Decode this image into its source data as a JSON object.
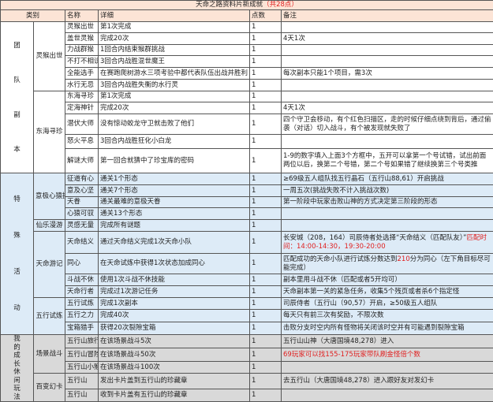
{
  "title": {
    "text": "天命之路资料片新成就",
    "highlight": "（共28点）"
  },
  "headers": {
    "category": "类别",
    "name": "名称",
    "detail": "详细",
    "points": "点数",
    "note": "备注"
  },
  "colors": {
    "header_bg": "#fce4d6",
    "special_bg": "#ddebf7",
    "growth_bg": "#d9d9d9",
    "red": "#e02020"
  },
  "sections": [
    {
      "label": "团队副本",
      "groups": [
        {
          "label": "灵猴出世",
          "rows": [
            {
              "name": "灵猴出世",
              "detail": "第1次完成",
              "points": "1",
              "note": [
                {
                  "t": ""
                }
              ]
            },
            {
              "name": "盖世灵猴",
              "detail": "完成20次",
              "points": "1",
              "note": [
                {
                  "t": "4天1次"
                }
              ]
            },
            {
              "name": "力战群猴",
              "detail": "1回合内结束猴群挑战",
              "points": "1",
              "note": [
                {
                  "t": ""
                }
              ]
            },
            {
              "name": "不打不相识",
              "detail": "3回合内战胜混世魔王",
              "points": "1",
              "note": [
                {
                  "t": ""
                }
              ]
            },
            {
              "name": "全能选手",
              "detail": "在赛跑爬树游水三项考验中都代表队伍出战并胜利",
              "points": "1",
              "note": [
                {
                  "t": "每次副本只能1个项目，需3次"
                }
              ]
            },
            {
              "name": "水行无忌",
              "detail": "3回合内战胜失衡的水行灵",
              "points": "1",
              "note": [
                {
                  "t": ""
                }
              ]
            }
          ]
        },
        {
          "label": "东海寻珍",
          "rows": [
            {
              "name": "东海寻珍",
              "detail": "第1次完成",
              "points": "1",
              "note": [
                {
                  "t": ""
                }
              ]
            },
            {
              "name": "定海神针",
              "detail": "完成20次",
              "points": "1",
              "note": [
                {
                  "t": "4天1次"
                }
              ]
            },
            {
              "name": "潜伏大师",
              "detail": "没有惊动蛟龙守卫就击败了他们",
              "points": "1",
              "note": [
                {
                  "t": "四个守卫会移动，有个红色扫描区，走的时候仔细点绕到背后，通过偷袭（对话）切入战斗，有个被发现就失败了"
                }
              ]
            },
            {
              "name": "怒火平息",
              "detail": "3回合内战胜狂化小白龙",
              "points": "1",
              "note": [
                {
                  "t": ""
                }
              ]
            },
            {
              "name": "解谜大师",
              "detail": "第一回合就猜中了珍宝库的密码",
              "points": "1",
              "note": [
                {
                  "t": "1-9的数字填入上面3个方框中，五开可以拿第一个号试错，试出前面两位以后，换第二个号错，第二个号如果错了继续换第三个号类推"
                }
              ]
            }
          ]
        }
      ]
    },
    {
      "label": "特殊活动",
      "groups": [
        {
          "label": "意极心猿挑战",
          "rows": [
            {
              "name": "征道有心",
              "detail": "通关1个形态",
              "points": "1",
              "note": [
                {
                  "t": "≥69级五人组队找五行晶石（五行山88,61）开启挑战"
                }
              ]
            },
            {
              "name": "意及心坚",
              "detail": "通关7个形态",
              "points": "1",
              "note": [
                {
                  "t": "一周五次(挑战失败不计入挑战次数)"
                }
              ]
            },
            {
              "name": "天眷",
              "detail": "通关最难的意极天眷",
              "points": "1",
              "note": [
                {
                  "t": "第一阶段中玩家击败山神的方式决定第三阶段的形态"
                }
              ]
            },
            {
              "name": "心猿可驭",
              "detail": "通关13个形态",
              "points": "1",
              "note": [
                {
                  "t": ""
                }
              ]
            }
          ]
        },
        {
          "label": "仙乐漫游",
          "rows": [
            {
              "name": "灵感无量",
              "detail": "完成所有谜题",
              "points": "1",
              "note": [
                {
                  "t": ""
                }
              ]
            }
          ]
        },
        {
          "label": "天命游记",
          "rows": [
            {
              "name": "天命结义",
              "detail": "通过天命结义完成1次天命小队",
              "points": "1",
              "note": [
                {
                  "t": "长安城（208，164）司辰侍者处选择“天命结义（匹配队友）”"
                },
                {
                  "t": "匹配时间：14:00-14:30，19:30-20:00",
                  "red": true
                }
              ]
            },
            {
              "name": "同心",
              "detail": "在天命试炼中获得1次状态加成同心",
              "points": "1",
              "note": [
                {
                  "t": "匹配成功的天命小队进行试炼分数达到"
                },
                {
                  "t": "210",
                  "red": true
                },
                {
                  "t": "分为同心（左下角目标尽可能完成）"
                }
              ]
            },
            {
              "name": "斗战不休",
              "detail": "使用1次斗战不休技能",
              "points": "1",
              "note": [
                {
                  "t": "副本里用斗战不休（匹配或者5开均可）"
                }
              ]
            },
            {
              "name": "天命行者",
              "detail": "完成过1次游记任务",
              "points": "1",
              "note": [
                {
                  "t": "天命副本第一关的紧急任务，收集5个残页或者杀6个指定怪"
                }
              ]
            }
          ]
        },
        {
          "label": "五行试炼",
          "rows": [
            {
              "name": "五行试炼",
              "detail": "完成1次副本",
              "points": "1",
              "note": [
                {
                  "t": "司辰侍者（五行山（90,57）开启，≥50级五人组队"
                }
              ]
            },
            {
              "name": "五行之力",
              "detail": "完成40次",
              "points": "1",
              "note": [
                {
                  "t": "每天只有前三次有奖励，不限次数"
                }
              ]
            },
            {
              "name": "宝箱猎手",
              "detail": "获得20次裂隙宝箱",
              "points": "1",
              "note": [
                {
                  "t": "击败分支时空内所有怪物将关闭该时空并有可能遇到裂隙宝箱"
                }
              ]
            }
          ]
        }
      ]
    },
    {
      "label": "我的成长休闲玩法",
      "groups": [
        {
          "label": "场景战斗",
          "rows": [
            {
              "name": "五行山旅行",
              "detail": "在该场景战斗5次",
              "points": "1",
              "note": [
                {
                  "t": "五行山山神（大唐国境48,278）进入"
                }
              ]
            },
            {
              "name": "五行山冒险",
              "detail": "在该场景战斗50次",
              "points": "1",
              "note": [
                {
                  "t": "69玩家可以找155-175玩家带队刷金怪倍个数",
                  "red": true
                }
              ]
            },
            {
              "name": "五行山小猴",
              "detail": "在该场景战斗100次",
              "points": "1",
              "note": [
                {
                  "t": ""
                }
              ]
            }
          ]
        },
        {
          "label": "百变幻卡",
          "rows": [
            {
              "name": "五行山",
              "detail": "发出卡片盖到五行山的珍藏章",
              "points": "1",
              "note": [
                {
                  "t": "去五行山（大唐国境48,278）进入跟好友对发幻卡"
                }
              ]
            },
            {
              "name": "五行山",
              "detail": "收到卡片盖有五行山的珍藏章",
              "points": "1",
              "note": [
                {
                  "t": ""
                }
              ]
            }
          ]
        }
      ]
    }
  ]
}
